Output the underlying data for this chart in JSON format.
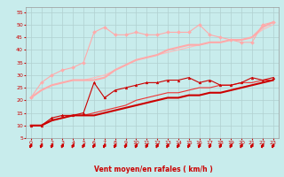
{
  "xlabel": "Vent moyen/en rafales ( km/h )",
  "bg_color": "#c8ecec",
  "grid_color": "#b0d0d0",
  "xlim": [
    -0.5,
    23.5
  ],
  "ylim": [
    5,
    57
  ],
  "yticks": [
    5,
    10,
    15,
    20,
    25,
    30,
    35,
    40,
    45,
    50,
    55
  ],
  "xticks": [
    0,
    1,
    2,
    3,
    4,
    5,
    6,
    7,
    8,
    9,
    10,
    11,
    12,
    13,
    14,
    15,
    16,
    17,
    18,
    19,
    20,
    21,
    22,
    23
  ],
  "series": [
    {
      "x": [
        0,
        1,
        2,
        3,
        4,
        5,
        6,
        7,
        8,
        9,
        10,
        11,
        12,
        13,
        14,
        15,
        16,
        17,
        18,
        19,
        20,
        21,
        22,
        23
      ],
      "y": [
        10,
        10,
        13,
        14,
        14,
        15,
        27,
        21,
        24,
        25,
        26,
        27,
        27,
        28,
        28,
        29,
        27,
        28,
        26,
        26,
        27,
        29,
        28,
        29
      ],
      "color": "#cc0000",
      "lw": 0.8,
      "marker": "^",
      "ms": 2.0,
      "zorder": 5
    },
    {
      "x": [
        0,
        1,
        2,
        3,
        4,
        5,
        6,
        7,
        8,
        9,
        10,
        11,
        12,
        13,
        14,
        15,
        16,
        17,
        18,
        19,
        20,
        21,
        22,
        23
      ],
      "y": [
        10,
        10,
        12,
        13,
        14,
        14,
        14,
        15,
        16,
        17,
        18,
        19,
        20,
        21,
        21,
        22,
        22,
        23,
        23,
        24,
        25,
        26,
        27,
        28
      ],
      "color": "#cc0000",
      "lw": 1.5,
      "marker": null,
      "ms": 0,
      "zorder": 4
    },
    {
      "x": [
        0,
        1,
        2,
        3,
        4,
        5,
        6,
        7,
        8,
        9,
        10,
        11,
        12,
        13,
        14,
        15,
        16,
        17,
        18,
        19,
        20,
        21,
        22,
        23
      ],
      "y": [
        10,
        10,
        12,
        13,
        14,
        14,
        15,
        16,
        17,
        18,
        20,
        21,
        22,
        23,
        23,
        24,
        25,
        25,
        26,
        26,
        27,
        27,
        28,
        28
      ],
      "color": "#ee3333",
      "lw": 0.8,
      "marker": null,
      "ms": 0,
      "zorder": 3
    },
    {
      "x": [
        0,
        1,
        2,
        3,
        4,
        5,
        6,
        7,
        8,
        9,
        10,
        11,
        12,
        13,
        14,
        15,
        16,
        17,
        18,
        19,
        20,
        21,
        22,
        23
      ],
      "y": [
        21,
        27,
        30,
        32,
        33,
        35,
        47,
        49,
        46,
        46,
        47,
        46,
        46,
        47,
        47,
        47,
        50,
        46,
        45,
        44,
        43,
        43,
        50,
        51
      ],
      "color": "#ffaaaa",
      "lw": 0.8,
      "marker": "D",
      "ms": 2.0,
      "zorder": 5
    },
    {
      "x": [
        0,
        1,
        2,
        3,
        4,
        5,
        6,
        7,
        8,
        9,
        10,
        11,
        12,
        13,
        14,
        15,
        16,
        17,
        18,
        19,
        20,
        21,
        22,
        23
      ],
      "y": [
        21,
        24,
        26,
        27,
        28,
        28,
        28,
        29,
        32,
        34,
        36,
        37,
        38,
        40,
        41,
        42,
        42,
        43,
        43,
        44,
        44,
        45,
        49,
        51
      ],
      "color": "#ffaaaa",
      "lw": 1.5,
      "marker": null,
      "ms": 0,
      "zorder": 4
    },
    {
      "x": [
        0,
        1,
        2,
        3,
        4,
        5,
        6,
        7,
        8,
        9,
        10,
        11,
        12,
        13,
        14,
        15,
        16,
        17,
        18,
        19,
        20,
        21,
        22,
        23
      ],
      "y": [
        21,
        24,
        26,
        27,
        28,
        28,
        29,
        30,
        32,
        34,
        36,
        37,
        38,
        39,
        40,
        41,
        42,
        43,
        43,
        44,
        44,
        45,
        48,
        50
      ],
      "color": "#ffbbbb",
      "lw": 0.8,
      "marker": null,
      "ms": 0,
      "zorder": 3
    }
  ],
  "arrow_color": "#cc0000",
  "tick_fontsize": 4.5,
  "axis_fontsize": 5.5
}
